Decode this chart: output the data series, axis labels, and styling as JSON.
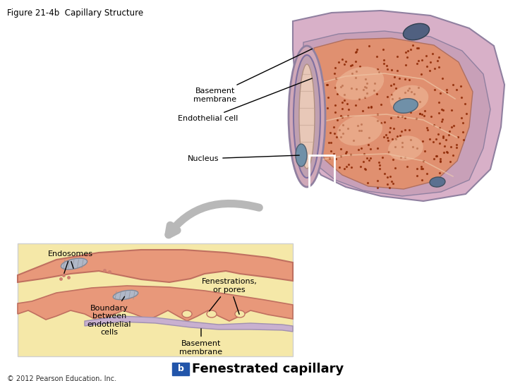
{
  "title": "Figure 21-4b  Capillary Structure",
  "title_fontsize": 8.5,
  "background_color": "#ffffff",
  "labels": {
    "basement_membrane": "Basement\nmembrane",
    "endothelial_cell": "Endothelial cell",
    "nucleus": "Nucleus",
    "endosomes": "Endosomes",
    "fenestrations": "Fenestrations,\nor pores",
    "boundary": "Boundary\nbetween\nendothelial\ncells",
    "basement_membrane2": "Basement\nmembrane",
    "copyright": "© 2012 Pearson Education, Inc.",
    "caption": "Fenestrated capillary",
    "caption_b": "b"
  },
  "colors": {
    "outer_tube": "#d4a8c0",
    "outer_tube_edge": "#a08090",
    "inner_cell": "#e8a080",
    "inner_cell_dark": "#c87060",
    "lumen": "#d46050",
    "lumen_dot": "#8b2500",
    "nucleus_fill": "#7090a8",
    "nucleus_edge": "#506070",
    "nucleus_dark": "#4a5a78",
    "zoom_bg": "#f5e8a8",
    "cell_top": "#e89478",
    "cell_edge": "#c06050",
    "bm_fill": "#e8b0a0",
    "bm_edge": "#c08070",
    "arrow_gray": "#c0c0c0",
    "blue_box": "#2255aa"
  },
  "font_sizes": {
    "labels": 8,
    "caption": 13,
    "copyright": 7,
    "title": 8.5
  }
}
